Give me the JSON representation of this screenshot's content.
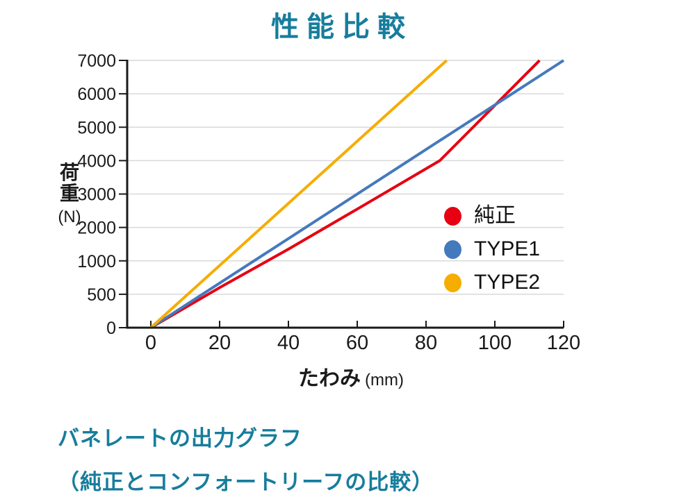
{
  "page": {
    "title": "性能比較"
  },
  "colors": {
    "accent_teal": "#177d9c",
    "series_red": "#e60012",
    "series_blue": "#4579bd",
    "series_yellow": "#f5ad00",
    "gridline": "#d9d9d9",
    "axis": "#1a1a1a"
  },
  "chart_data": {
    "type": "line",
    "title": "性能比較",
    "xlabel": "たわみ",
    "xlabel_unit": "(mm)",
    "ylabel": "荷重",
    "ylabel_unit": "(N)",
    "x_ticks": [
      0,
      20,
      40,
      60,
      80,
      100,
      120
    ],
    "y_ticks": [
      0,
      500,
      1000,
      2000,
      3000,
      4000,
      5000,
      6000,
      7000
    ],
    "y_axis_note": "tick marks equally spaced on axis; 500 N steps below 1000 N, 1000 N steps above",
    "xlim": [
      0,
      120
    ],
    "grid": "horizontal gridlines only",
    "legend_position": "inside-right",
    "series": [
      {
        "name": "純正",
        "color": "#e60012",
        "points": [
          [
            0,
            0
          ],
          [
            20,
            600
          ],
          [
            40,
            1350
          ],
          [
            60,
            2550
          ],
          [
            84,
            4000
          ],
          [
            113,
            7000
          ]
        ]
      },
      {
        "name": "TYPE1",
        "color": "#4579bd",
        "points": [
          [
            0,
            0
          ],
          [
            120,
            7000
          ]
        ]
      },
      {
        "name": "TYPE2",
        "color": "#f5ad00",
        "points": [
          [
            0,
            0
          ],
          [
            86,
            7000
          ]
        ]
      }
    ]
  },
  "caption": {
    "line1": "バネレートの出力グラフ",
    "line2": "（純正とコンフォートリーフの比較）"
  }
}
